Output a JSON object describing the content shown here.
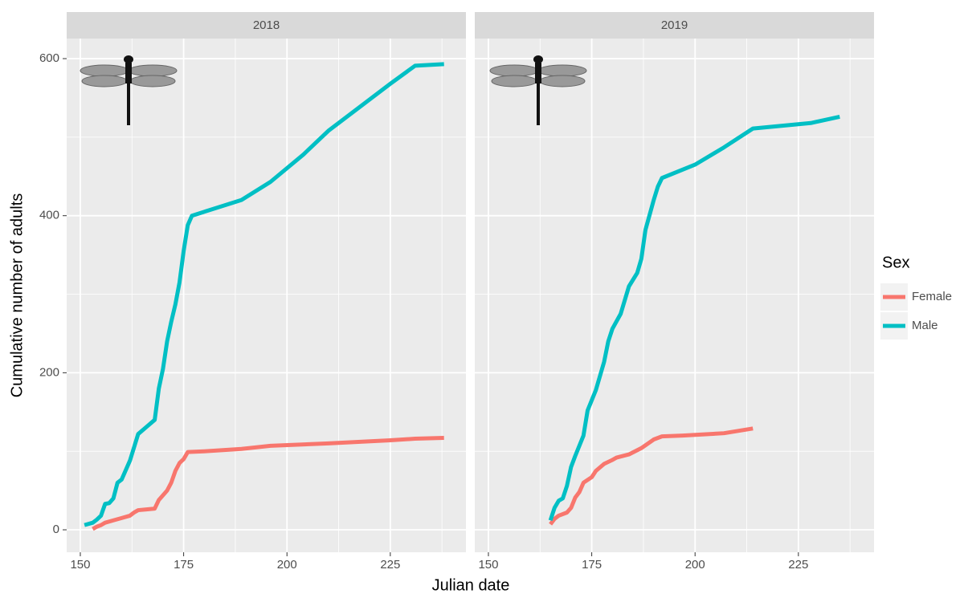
{
  "chart_data": {
    "type": "line",
    "x_label": "Julian date",
    "y_label": "Cumulative number of adults",
    "legend_title": "Sex",
    "xlim": [
      146.7,
      243.3
    ],
    "ylim": [
      -28.6,
      625.6
    ],
    "xticks": [
      150,
      175,
      200,
      225
    ],
    "yticks": [
      0,
      200,
      400,
      600
    ],
    "xminor": [
      162.5,
      187.5,
      212.5,
      237.5
    ],
    "yminor": [
      100,
      300,
      500
    ],
    "grid": true,
    "series": [
      {
        "name": "Female",
        "color": "#f8766d"
      },
      {
        "name": "Male",
        "color": "#00bfc4"
      }
    ],
    "facets": [
      {
        "title": "2018",
        "series": [
          {
            "x": [
              153,
              154,
              155,
              156,
              158,
              160,
              162,
              163,
              164,
              166,
              168,
              169,
              170,
              171,
              172,
              173,
              174,
              175,
              176,
              180,
              189,
              196,
              210,
              225,
              231,
              238
            ],
            "values": [
              1,
              4,
              6,
              9,
              12,
              15,
              18,
              22,
              25,
              26,
              27,
              38,
              44,
              50,
              60,
              75,
              85,
              90,
              99,
              100,
              103,
              107,
              110,
              114,
              116,
              117
            ]
          },
          {
            "x": [
              151,
              153,
              154,
              155,
              156,
              157,
              158,
              159,
              160,
              162,
              164,
              166,
              168,
              169,
              170,
              171,
              172,
              173,
              174,
              175,
              176,
              177,
              189,
              196,
              204,
              210,
              218,
              225,
              231,
              238
            ],
            "values": [
              6,
              9,
              13,
              18,
              33,
              34,
              40,
              60,
              64,
              88,
              122,
              131,
              140,
              180,
              205,
              240,
              265,
              287,
              315,
              355,
              388,
              400,
              420,
              443,
              478,
              508,
              540,
              568,
              591,
              593
            ]
          }
        ]
      },
      {
        "title": "2019",
        "series": [
          {
            "x": [
              165,
              166,
              167,
              169,
              170,
              171,
              172,
              173,
              175,
              176,
              178,
              180,
              181,
              184,
              187,
              190,
              192,
              197,
              207,
              214
            ],
            "values": [
              7,
              14,
              18,
              22,
              28,
              41,
              48,
              60,
              67,
              75,
              84,
              89,
              92,
              96,
              104,
              115,
              119,
              120,
              123,
              129
            ]
          },
          {
            "x": [
              165,
              166,
              167,
              168,
              169,
              170,
              171,
              173,
              174,
              176,
              178,
              179,
              180,
              182,
              184,
              186,
              187,
              188,
              190,
              191,
              192,
              200,
              207,
              214,
              228,
              235
            ],
            "values": [
              12,
              28,
              37,
              40,
              56,
              80,
              94,
              120,
              152,
              178,
              214,
              240,
              256,
              275,
              310,
              327,
              345,
              382,
              420,
              437,
              448,
              465,
              487,
              511,
              518,
              526
            ]
          }
        ]
      }
    ]
  }
}
